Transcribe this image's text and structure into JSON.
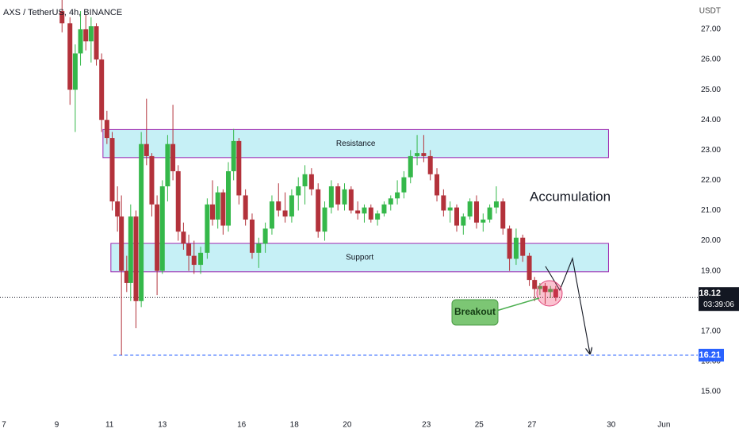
{
  "chart_data": {
    "type": "candlestick",
    "title": "AXS / TetherUS, 4h, BINANCE",
    "y_unit": "USDT",
    "up_color": "#35b84a",
    "down_color": "#b3323b",
    "grid": false,
    "xlim": [
      6.85,
      32.98
    ],
    "ylim": [
      14.45,
      27.97
    ],
    "xticks": [
      7,
      9,
      11,
      13,
      16,
      18,
      20,
      23,
      25,
      27,
      30,
      {
        "value": 32,
        "label": "Jun"
      }
    ],
    "yticks": [
      {
        "value": 15,
        "label": "15.00"
      },
      {
        "value": 16,
        "label": "16.00"
      },
      {
        "value": 17,
        "label": "17.00"
      },
      {
        "value": 18,
        "label": "18.00"
      },
      {
        "value": 19,
        "label": "19.00"
      },
      {
        "value": 20,
        "label": "20.00"
      },
      {
        "value": 21,
        "label": "21.00"
      },
      {
        "value": 22,
        "label": "22.00"
      },
      {
        "value": 23,
        "label": "23.00"
      },
      {
        "value": 24,
        "label": "24.00"
      },
      {
        "value": 25,
        "label": "25.00"
      },
      {
        "value": 26,
        "label": "26.00"
      },
      {
        "value": 27,
        "label": "27.00"
      }
    ],
    "x": [
      9.2,
      9.5,
      9.7,
      9.9,
      10.1,
      10.3,
      10.5,
      10.7,
      10.9,
      11.1,
      11.3,
      11.45,
      11.65,
      11.8,
      12.0,
      12.2,
      12.4,
      12.6,
      12.8,
      13.0,
      13.2,
      13.4,
      13.6,
      13.8,
      14.0,
      14.2,
      14.45,
      14.7,
      14.9,
      15.1,
      15.3,
      15.5,
      15.7,
      15.9,
      16.15,
      16.4,
      16.65,
      16.9,
      17.15,
      17.4,
      17.65,
      17.9,
      18.15,
      18.4,
      18.65,
      18.9,
      19.15,
      19.4,
      19.65,
      19.9,
      20.15,
      20.4,
      20.65,
      20.9,
      21.15,
      21.4,
      21.65,
      21.9,
      22.15,
      22.4,
      22.65,
      22.9,
      23.15,
      23.4,
      23.65,
      23.9,
      24.15,
      24.4,
      24.65,
      24.9,
      25.15,
      25.4,
      25.65,
      25.9,
      26.15,
      26.4,
      26.65,
      26.9,
      27.1,
      27.3,
      27.5,
      27.7,
      27.9
    ],
    "open": [
      27.6,
      27.2,
      25.0,
      26.2,
      27.0,
      26.6,
      27.1,
      26.0,
      24.0,
      23.4,
      21.3,
      20.8,
      19.0,
      18.6,
      20.8,
      18.0,
      23.2,
      22.8,
      21.2,
      19.0,
      21.8,
      23.2,
      22.3,
      20.3,
      19.9,
      19.5,
      19.2,
      19.6,
      21.2,
      20.7,
      21.6,
      20.5,
      22.3,
      23.3,
      21.5,
      20.7,
      19.6,
      19.9,
      20.4,
      21.3,
      21.0,
      20.8,
      21.5,
      21.8,
      22.2,
      21.7,
      20.3,
      21.1,
      21.8,
      21.2,
      21.7,
      21.0,
      20.9,
      21.1,
      20.7,
      20.9,
      21.2,
      21.4,
      21.6,
      22.1,
      22.8,
      22.9,
      22.8,
      22.2,
      21.5,
      21.0,
      21.1,
      20.5,
      20.8,
      21.3,
      20.6,
      20.7,
      21.1,
      21.3,
      20.4,
      19.4,
      20.1,
      19.5,
      18.7,
      18.4,
      18.5,
      18.3,
      18.4
    ],
    "high": [
      28.0,
      27.4,
      26.5,
      27.6,
      27.5,
      27.4,
      27.2,
      26.2,
      24.3,
      23.6,
      21.8,
      21.5,
      19.5,
      21.2,
      21.0,
      23.6,
      24.7,
      22.9,
      21.5,
      22.0,
      23.5,
      24.5,
      22.5,
      20.6,
      20.2,
      20.0,
      19.8,
      21.4,
      22.0,
      21.8,
      21.7,
      22.6,
      23.7,
      23.4,
      21.7,
      20.9,
      20.1,
      20.6,
      21.5,
      21.9,
      21.6,
      21.7,
      22.1,
      22.5,
      22.4,
      21.9,
      21.3,
      22.0,
      21.9,
      21.9,
      21.8,
      21.3,
      21.2,
      21.2,
      21.0,
      21.3,
      21.5,
      22.0,
      22.3,
      23.0,
      23.5,
      23.5,
      23.0,
      22.4,
      21.7,
      21.3,
      21.2,
      20.9,
      21.4,
      21.5,
      20.9,
      21.2,
      21.8,
      21.4,
      20.5,
      20.4,
      20.2,
      19.6,
      18.8,
      18.6,
      18.6,
      18.5,
      18.5
    ],
    "low": [
      26.9,
      24.5,
      23.6,
      25.8,
      26.3,
      25.9,
      25.8,
      23.6,
      23.2,
      21.0,
      20.3,
      16.21,
      18.3,
      18.0,
      17.1,
      17.8,
      22.5,
      20.8,
      18.2,
      18.9,
      21.3,
      22.0,
      20.0,
      19.7,
      19.0,
      18.9,
      18.9,
      19.4,
      20.5,
      20.4,
      20.2,
      20.3,
      22.0,
      21.2,
      20.5,
      19.4,
      19.1,
      19.6,
      20.2,
      20.8,
      20.6,
      20.6,
      21.0,
      21.2,
      21.5,
      20.1,
      20.0,
      20.9,
      21.0,
      21.0,
      20.9,
      20.7,
      20.6,
      20.6,
      20.5,
      20.8,
      21.0,
      21.2,
      21.4,
      21.9,
      22.5,
      22.6,
      22.0,
      21.3,
      20.8,
      20.6,
      20.3,
      20.2,
      20.7,
      20.4,
      20.3,
      20.6,
      20.9,
      20.2,
      19.0,
      19.2,
      19.3,
      18.5,
      18.0,
      18.2,
      17.9,
      18.1,
      18.0
    ],
    "close": [
      27.2,
      25.0,
      26.2,
      27.0,
      26.6,
      27.1,
      26.0,
      24.0,
      23.4,
      21.3,
      20.8,
      19.0,
      18.6,
      20.8,
      18.0,
      23.2,
      22.8,
      21.2,
      19.0,
      21.8,
      23.2,
      22.3,
      20.3,
      19.9,
      19.5,
      19.2,
      19.6,
      21.2,
      20.7,
      21.6,
      20.5,
      22.3,
      23.3,
      21.5,
      20.7,
      19.6,
      19.9,
      20.4,
      21.3,
      21.0,
      20.8,
      21.5,
      21.8,
      22.2,
      21.7,
      20.3,
      21.1,
      21.8,
      21.2,
      21.7,
      21.0,
      20.9,
      21.1,
      20.7,
      20.9,
      21.2,
      21.4,
      21.6,
      22.1,
      22.8,
      22.9,
      22.8,
      22.2,
      21.5,
      21.0,
      21.1,
      20.5,
      20.8,
      21.3,
      20.6,
      20.7,
      21.1,
      21.3,
      20.4,
      19.4,
      20.1,
      19.5,
      18.7,
      18.4,
      18.5,
      18.3,
      18.4,
      18.12
    ],
    "zones": [
      {
        "label": "Resistance",
        "top": 23.68,
        "bottom": 22.75,
        "from": 10.75,
        "to": 29.9
      },
      {
        "label": "Support",
        "top": 19.91,
        "bottom": 18.97,
        "from": 11.05,
        "to": 29.9
      }
    ],
    "last_price": 18.12,
    "countdown": "03:39:06",
    "target": {
      "value": 16.21,
      "from": 11.15
    },
    "annotations": {
      "accumulation": "Accumulation",
      "breakout": "Breakout"
    }
  }
}
